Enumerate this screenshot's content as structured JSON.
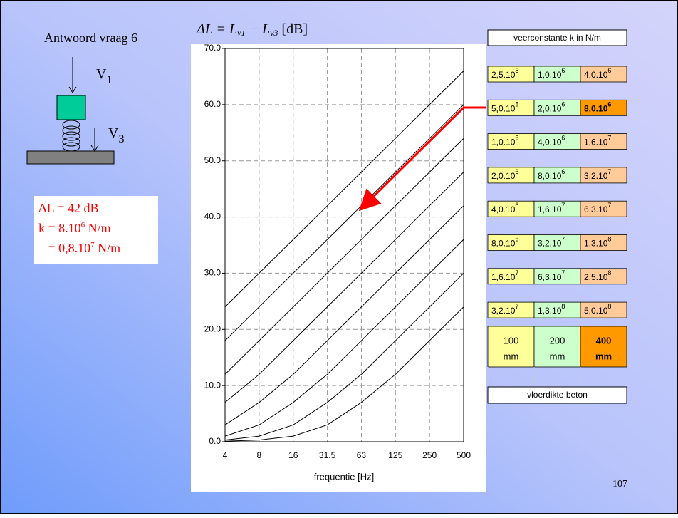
{
  "chart_data": {
    "type": "line",
    "title_parts": [
      "ΔL = L",
      "v1",
      " − L",
      "v3",
      "  [dB]"
    ],
    "x_label": "frequentie [Hz]",
    "categories": [
      "4",
      "8",
      "16",
      "31.5",
      "63",
      "125",
      "250",
      "500"
    ],
    "ylim": [
      0,
      70
    ],
    "yticks": [
      {
        "value": 0,
        "label": "0.0"
      },
      {
        "value": 10,
        "label": "10.0"
      },
      {
        "value": 20,
        "label": "20.0"
      },
      {
        "value": 30,
        "label": "30.0"
      },
      {
        "value": 40,
        "label": "40.0"
      },
      {
        "value": 50,
        "label": "50.0"
      },
      {
        "value": 60,
        "label": "60.0"
      },
      {
        "value": 70,
        "label": "70.0"
      }
    ],
    "grid": true,
    "series": [
      {
        "color": "#000000",
        "values": [
          24,
          30,
          36,
          42,
          48,
          54,
          60,
          66
        ]
      },
      {
        "color": "#000000",
        "values": [
          18,
          24,
          30,
          36,
          42,
          48,
          54,
          60
        ]
      },
      {
        "color": "#000000",
        "values": [
          12,
          18,
          24,
          30,
          36,
          42,
          48,
          54
        ]
      },
      {
        "color": "#000000",
        "values": [
          7,
          12,
          18,
          24,
          30,
          36,
          42,
          48
        ]
      },
      {
        "color": "#000000",
        "values": [
          3,
          7,
          12,
          18,
          24,
          30,
          36,
          42
        ]
      },
      {
        "color": "#000000",
        "values": [
          1,
          3,
          7,
          12,
          18,
          24,
          30,
          36
        ]
      },
      {
        "color": "#000000",
        "values": [
          0.3,
          1,
          3,
          7,
          12,
          18,
          24,
          30
        ]
      },
      {
        "color": "#000000",
        "values": [
          0.1,
          0.3,
          1,
          3,
          7,
          12,
          18,
          24
        ]
      }
    ]
  },
  "left": {
    "heading": "Antwoord vraag 6",
    "v1": [
      "V",
      "1"
    ],
    "v3": [
      "V",
      "3"
    ],
    "answer": [
      [
        "ΔL = 42 dB"
      ],
      [
        "k = 8.10",
        "6",
        " N/m"
      ],
      [
        "   = 0,8.10",
        "7",
        " N/m"
      ]
    ]
  },
  "table": {
    "header": "veerconstante k in N/m",
    "rows": [
      [
        [
          "2,5.10",
          "5"
        ],
        [
          "1,0.10",
          "6"
        ],
        [
          "4,0.10",
          "6"
        ]
      ],
      [
        [
          "5,0.10",
          "5"
        ],
        [
          "2,0.10",
          "6"
        ],
        [
          "8,0.10",
          "6"
        ]
      ],
      [
        [
          "1,0.10",
          "6"
        ],
        [
          "4,0.10",
          "6"
        ],
        [
          "1,6.10",
          "7"
        ]
      ],
      [
        [
          "2,0.10",
          "6"
        ],
        [
          "8,0.10",
          "6"
        ],
        [
          "3,2.10",
          "7"
        ]
      ],
      [
        [
          "4,0.10",
          "6"
        ],
        [
          "1,6.10",
          "7"
        ],
        [
          "6,3.10",
          "7"
        ]
      ],
      [
        [
          "8,0.10",
          "6"
        ],
        [
          "3,2.10",
          "7"
        ],
        [
          "1,3.10",
          "8"
        ]
      ],
      [
        [
          "1,6.10",
          "7"
        ],
        [
          "6,3.10",
          "7"
        ],
        [
          "2,5.10",
          "8"
        ]
      ],
      [
        [
          "3,2.10",
          "7"
        ],
        [
          "1,3.10",
          "8"
        ],
        [
          "5,0.10",
          "8"
        ]
      ]
    ],
    "highlight": [
      1,
      2
    ],
    "colors": [
      "#ffff99",
      "#ccffcc",
      "#ffcc99"
    ],
    "highlight_color": "#ff9900",
    "thickness": [
      [
        "100",
        "mm"
      ],
      [
        "200",
        "mm"
      ],
      [
        "400",
        "mm"
      ]
    ],
    "footer": "vloerdikte beton"
  },
  "page_number": "107"
}
